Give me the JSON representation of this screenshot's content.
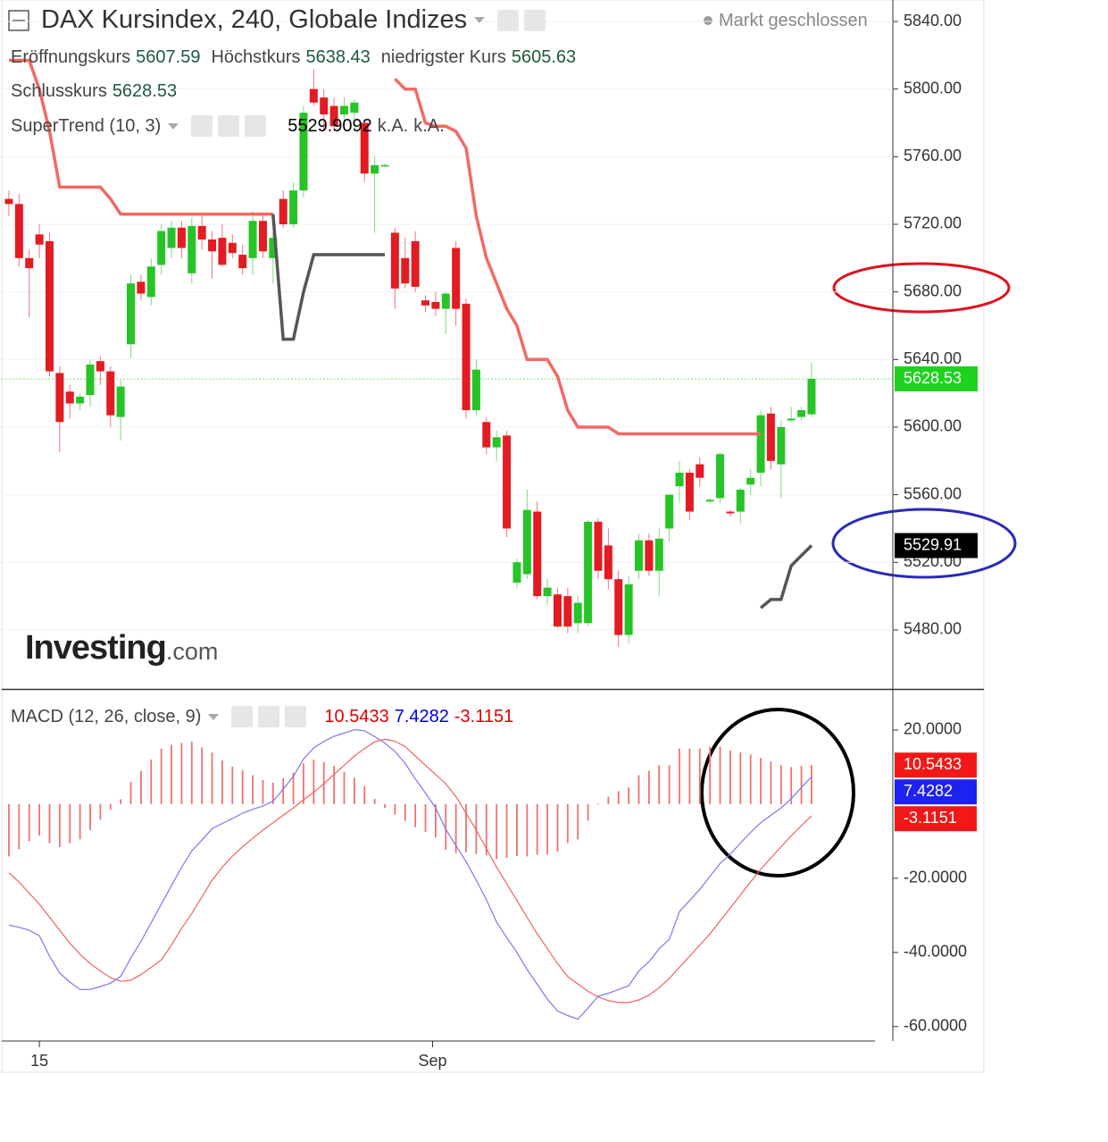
{
  "chart_data": [
    {
      "type": "candlestick",
      "title": "DAX Kursindex, 240, Globale Indizes",
      "status": "Markt geschlossen",
      "ohlc_labels": [
        "Eröffnungskurs",
        "Höchstkurs",
        "niedrigster Kurs",
        "Schlusskurs"
      ],
      "watermark": "Investing",
      "watermark_suffix": ".com",
      "up_color": "#26c426",
      "down_color": "#e31b23",
      "ohlc": [
        [
          5735,
          5740,
          5725,
          5732
        ],
        [
          5732,
          5738,
          5695,
          5700
        ],
        [
          5700,
          5705,
          5665,
          5694
        ],
        [
          5714,
          5720,
          5700,
          5708
        ],
        [
          5710,
          5715,
          5630,
          5633
        ],
        [
          5632,
          5636,
          5585,
          5603
        ],
        [
          5621,
          5625,
          5605,
          5614
        ],
        [
          5614,
          5620,
          5610,
          5618
        ],
        [
          5619,
          5640,
          5612,
          5637
        ],
        [
          5639,
          5642,
          5625,
          5633
        ],
        [
          5633,
          5636,
          5600,
          5607
        ],
        [
          5606,
          5628,
          5592,
          5624
        ],
        [
          5649,
          5690,
          5641,
          5685
        ],
        [
          5686,
          5690,
          5675,
          5679
        ],
        [
          5677,
          5700,
          5672,
          5695
        ],
        [
          5696,
          5720,
          5690,
          5716
        ],
        [
          5706,
          5722,
          5700,
          5718
        ],
        [
          5718,
          5722,
          5700,
          5706
        ],
        [
          5691,
          5724,
          5685,
          5719
        ],
        [
          5719,
          5726,
          5705,
          5711
        ],
        [
          5711,
          5716,
          5688,
          5704
        ],
        [
          5712,
          5720,
          5695,
          5696
        ],
        [
          5709,
          5714,
          5700,
          5703
        ],
        [
          5702,
          5708,
          5690,
          5694
        ],
        [
          5700,
          5728,
          5690,
          5722
        ],
        [
          5722,
          5726,
          5700,
          5704
        ],
        [
          5700,
          5715,
          5685,
          5712
        ],
        [
          5735,
          5740,
          5718,
          5720
        ],
        [
          5720,
          5745,
          5718,
          5740
        ],
        [
          5740,
          5790,
          5736,
          5786
        ],
        [
          5800,
          5812,
          5790,
          5792
        ],
        [
          5795,
          5800,
          5775,
          5785
        ],
        [
          5790,
          5795,
          5775,
          5778
        ],
        [
          5785,
          5795,
          5780,
          5790
        ],
        [
          5786,
          5794,
          5775,
          5792
        ],
        [
          5780,
          5782,
          5745,
          5750
        ],
        [
          5750,
          5760,
          5715,
          5755
        ],
        [
          5755,
          5756,
          5754,
          5755
        ],
        [
          5715,
          5718,
          5670,
          5682
        ],
        [
          5700,
          5712,
          5682,
          5685
        ],
        [
          5710,
          5716,
          5680,
          5683
        ],
        [
          5675,
          5678,
          5668,
          5672
        ],
        [
          5674,
          5680,
          5666,
          5670
        ],
        [
          5670,
          5680,
          5655,
          5679
        ],
        [
          5706,
          5710,
          5660,
          5670
        ],
        [
          5673,
          5676,
          5605,
          5610
        ],
        [
          5610,
          5640,
          5607,
          5634
        ],
        [
          5603,
          5606,
          5584,
          5588
        ],
        [
          5588,
          5598,
          5580,
          5594
        ],
        [
          5595,
          5598,
          5535,
          5540
        ],
        [
          5508,
          5522,
          5505,
          5520
        ],
        [
          5513,
          5563,
          5510,
          5551
        ],
        [
          5550,
          5556,
          5498,
          5500
        ],
        [
          5500,
          5510,
          5495,
          5505
        ],
        [
          5501,
          5505,
          5481,
          5482
        ],
        [
          5500,
          5505,
          5478,
          5482
        ],
        [
          5484,
          5500,
          5478,
          5496
        ],
        [
          5484,
          5545,
          5482,
          5544
        ],
        [
          5544,
          5546,
          5510,
          5515
        ],
        [
          5530,
          5540,
          5504,
          5510
        ],
        [
          5510,
          5515,
          5470,
          5477
        ],
        [
          5477,
          5512,
          5472,
          5507
        ],
        [
          5515,
          5537,
          5510,
          5533
        ],
        [
          5533,
          5537,
          5512,
          5515
        ],
        [
          5515,
          5540,
          5500,
          5534
        ],
        [
          5540,
          5560,
          5532,
          5560
        ],
        [
          5565,
          5580,
          5555,
          5573
        ],
        [
          5573,
          5575,
          5545,
          5550
        ],
        [
          5578,
          5582,
          5565,
          5570
        ],
        [
          5556,
          5558,
          5555,
          5557
        ],
        [
          5558,
          5585,
          5555,
          5584
        ],
        [
          5550,
          5551,
          5547,
          5549
        ],
        [
          5550,
          5564,
          5543,
          5563
        ],
        [
          5566,
          5575,
          5560,
          5570
        ],
        [
          5573,
          5610,
          5565,
          5607
        ],
        [
          5608,
          5612,
          5575,
          5580
        ],
        [
          5578,
          5604,
          5558,
          5600
        ],
        [
          5604,
          5612,
          5603,
          5605
        ],
        [
          5606,
          5612,
          5604,
          5610
        ],
        [
          5607.59,
          5638.43,
          5605.63,
          5628.53
        ]
      ],
      "supertrend": {
        "name": "SuperTrend (10, 3)",
        "na_labels": [
          "k.A.",
          "k.A."
        ],
        "down_color": "#f26a62",
        "up_color": "#555555",
        "last_value_label": "5529.91",
        "down_values": [
          5817,
          5817,
          5817,
          5800,
          5775,
          5742,
          5742,
          5742,
          5742,
          5742,
          5735,
          5726,
          5726,
          5726,
          5726,
          5726,
          5726,
          5726,
          5726,
          5726,
          5726,
          5726,
          5726,
          5726,
          5726,
          5726,
          5726,
          null,
          null,
          null,
          null,
          null,
          null,
          null,
          null,
          null,
          null,
          null,
          5806,
          5800,
          5800,
          5780,
          5778,
          5778,
          5775,
          5765,
          5725,
          5700,
          5685,
          5670,
          5660,
          5640,
          5640,
          5640,
          5630,
          5610,
          5600,
          5600,
          5600,
          5600,
          5596,
          5596,
          5596,
          5596,
          5596,
          5596,
          5596,
          5596,
          5596,
          5596,
          5596,
          5596,
          5596,
          5596,
          5596,
          null,
          null,
          null,
          null,
          null
        ],
        "up_values": [
          null,
          null,
          null,
          null,
          null,
          null,
          null,
          null,
          null,
          null,
          null,
          null,
          null,
          null,
          null,
          null,
          null,
          null,
          null,
          null,
          null,
          null,
          null,
          null,
          null,
          null,
          5726,
          5652,
          5652,
          5680,
          5702,
          5702,
          5702,
          5702,
          5702,
          5702,
          5702,
          5702,
          null,
          null,
          null,
          null,
          null,
          null,
          null,
          null,
          null,
          null,
          null,
          null,
          null,
          null,
          null,
          null,
          null,
          null,
          null,
          null,
          null,
          null,
          null,
          null,
          null,
          null,
          null,
          null,
          null,
          null,
          null,
          null,
          null,
          null,
          null,
          null,
          5493,
          5498,
          5498,
          5518,
          5524,
          5529.9092
        ]
      },
      "xlim": [
        -0.7,
        87
      ],
      "ylim": [
        5445.6,
        5852.7
      ],
      "yticks": [
        {
          "value": 5480,
          "label": "5480.00"
        },
        {
          "value": 5520,
          "label": "5520.00"
        },
        {
          "value": 5560,
          "label": "5560.00"
        },
        {
          "value": 5600,
          "label": "5600.00"
        },
        {
          "value": 5640,
          "label": "5640.00"
        },
        {
          "value": 5680,
          "label": "5680.00"
        },
        {
          "value": 5720,
          "label": "5720.00"
        },
        {
          "value": 5760,
          "label": "5760.00"
        },
        {
          "value": 5800,
          "label": "5800.00"
        },
        {
          "value": 5840,
          "label": "5840.00"
        }
      ],
      "grid": true
    },
    {
      "type": "macd",
      "title": "MACD (12, 26, close, 9)",
      "histogram": {
        "color": "#f07070",
        "label_color": "#e00000",
        "values": [
          -14.1,
          -12.2,
          -10,
          -8.5,
          -10.5,
          -11.6,
          -10.5,
          -9.5,
          -7,
          -4.2,
          -1.5,
          1.3,
          6,
          9,
          12,
          15,
          16,
          16.5,
          16.9,
          15.3,
          13.9,
          11.8,
          10.1,
          9.1,
          7.8,
          6.5,
          5.8,
          7,
          8.5,
          11,
          12,
          11.4,
          10.3,
          8.7,
          7.1,
          4.8,
          1.4,
          -1,
          -2.8,
          -4.5,
          -6.2,
          -7.5,
          -9,
          -12.3,
          -13.2,
          -13,
          -13.5,
          -13.8,
          -14.8,
          -14.5,
          -14,
          -14.1,
          -13.6,
          -13.6,
          -12.8,
          -10.5,
          -9.5,
          -4.5,
          0.2,
          2,
          3.5,
          4.5,
          7.8,
          9,
          10.5,
          10.5,
          15,
          15,
          15,
          15.5,
          15.5,
          14.5,
          14,
          13.4,
          12.5,
          11.5,
          10.5,
          10,
          10.3,
          10.5433
        ]
      },
      "macd_line": {
        "color": "#7878f0",
        "label_color": "#0000e0",
        "values": [
          -32.6,
          -33.2,
          -34,
          -35.5,
          -41,
          -45.6,
          -48,
          -50,
          -50,
          -49.2,
          -48.3,
          -46.5,
          -41.5,
          -37,
          -32,
          -27,
          -22,
          -17,
          -12.6,
          -9.7,
          -6.6,
          -5.2,
          -3.9,
          -2.4,
          -1.4,
          -0.5,
          0.8,
          4,
          7.5,
          12.2,
          15.2,
          16.9,
          18.3,
          19.2,
          20.1,
          19.8,
          18.2,
          16.5,
          14.2,
          11,
          6.8,
          3,
          -1,
          -6.8,
          -11.2,
          -15.5,
          -20.5,
          -25.8,
          -31.8,
          -36,
          -40,
          -44.6,
          -48.6,
          -52.6,
          -55.8,
          -57,
          -58,
          -55,
          -51.8,
          -51,
          -50,
          -49,
          -45,
          -42.5,
          -39,
          -36.5,
          -29,
          -26,
          -23,
          -19.5,
          -16,
          -13.5,
          -10.5,
          -7.6,
          -5,
          -3,
          -1,
          1.5,
          4.5,
          7.4282
        ]
      },
      "signal_line": {
        "color": "#f06060",
        "label_color": "#e00000",
        "values": [
          -18.5,
          -21,
          -24,
          -27,
          -30.5,
          -34,
          -37.5,
          -40.5,
          -43,
          -45,
          -46.8,
          -47.8,
          -47.5,
          -46,
          -44,
          -42,
          -38,
          -33.5,
          -29.5,
          -25,
          -20.5,
          -17,
          -14,
          -11.5,
          -9.2,
          -7,
          -5,
          -3,
          -1,
          1.2,
          3.2,
          5.5,
          8,
          10.5,
          13,
          15,
          16.8,
          17.5,
          17,
          15.5,
          13,
          10.5,
          8,
          5.5,
          2,
          -2.5,
          -7,
          -12,
          -17,
          -21.5,
          -26,
          -30.5,
          -35,
          -39,
          -43,
          -46.5,
          -48.5,
          -50.5,
          -52,
          -53,
          -53.5,
          -53.5,
          -52.8,
          -51.5,
          -49.5,
          -47,
          -44,
          -41,
          -38,
          -35,
          -31.5,
          -28,
          -24.5,
          -21,
          -17.5,
          -14.5,
          -11.5,
          -8.5,
          -5.8,
          -3.1151
        ]
      },
      "xlim": [
        -0.7,
        87
      ],
      "ylim": [
        -63.9,
        30.6
      ],
      "yticks": [
        {
          "value": -60,
          "label": "-60.0000"
        },
        {
          "value": -40,
          "label": "-40.0000"
        },
        {
          "value": -20,
          "label": "-20.0000"
        },
        {
          "value": 20,
          "label": "20.0000"
        }
      ],
      "xticks": [
        {
          "value": 3,
          "label": "15"
        },
        {
          "value": 41.7,
          "label": "Sep"
        }
      ]
    }
  ]
}
